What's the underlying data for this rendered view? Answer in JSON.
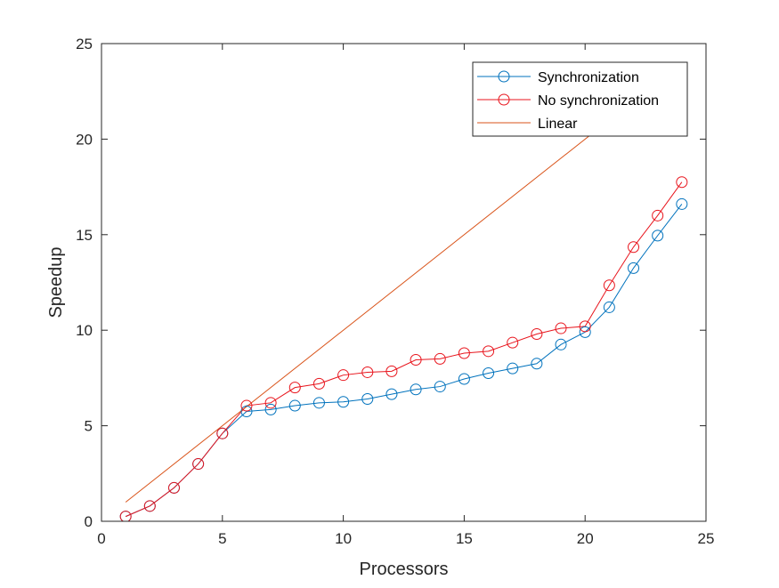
{
  "chart_data": {
    "type": "line",
    "title": "",
    "xlabel": "Processors",
    "ylabel": "Speedup",
    "xlim": [
      0,
      25
    ],
    "ylim": [
      0,
      25
    ],
    "xticks": [
      "0",
      "5",
      "10",
      "15",
      "20",
      "25"
    ],
    "yticks": [
      "0",
      "5",
      "10",
      "15",
      "20",
      "25"
    ],
    "grid": false,
    "legend_position": "top-right",
    "series": [
      {
        "name": "Synchronization",
        "color": "#0072BD",
        "marker": "circle",
        "x": [
          1,
          2,
          3,
          4,
          5,
          6,
          7,
          8,
          9,
          10,
          11,
          12,
          13,
          14,
          15,
          16,
          17,
          18,
          19,
          20,
          21,
          22,
          23,
          24
        ],
        "y": [
          0.25,
          0.8,
          1.75,
          3.0,
          4.6,
          5.75,
          5.85,
          6.05,
          6.2,
          6.25,
          6.4,
          6.65,
          6.9,
          7.05,
          7.45,
          7.75,
          8.0,
          8.25,
          9.25,
          9.9,
          11.2,
          13.25,
          14.95,
          16.6
        ]
      },
      {
        "name": "No synchronization",
        "color": "#E8141C",
        "marker": "circle",
        "x": [
          1,
          2,
          3,
          4,
          5,
          6,
          7,
          8,
          9,
          10,
          11,
          12,
          13,
          14,
          15,
          16,
          17,
          18,
          19,
          20,
          21,
          22,
          23,
          24
        ],
        "y": [
          0.25,
          0.8,
          1.75,
          3.0,
          4.6,
          6.05,
          6.2,
          7.0,
          7.2,
          7.65,
          7.8,
          7.85,
          8.45,
          8.5,
          8.8,
          8.9,
          9.35,
          9.8,
          10.1,
          10.2,
          12.35,
          14.35,
          16.0,
          17.75
        ]
      },
      {
        "name": "Linear",
        "color": "#D95319",
        "marker": "none",
        "x": [
          1,
          24
        ],
        "y": [
          1,
          24
        ]
      }
    ]
  }
}
